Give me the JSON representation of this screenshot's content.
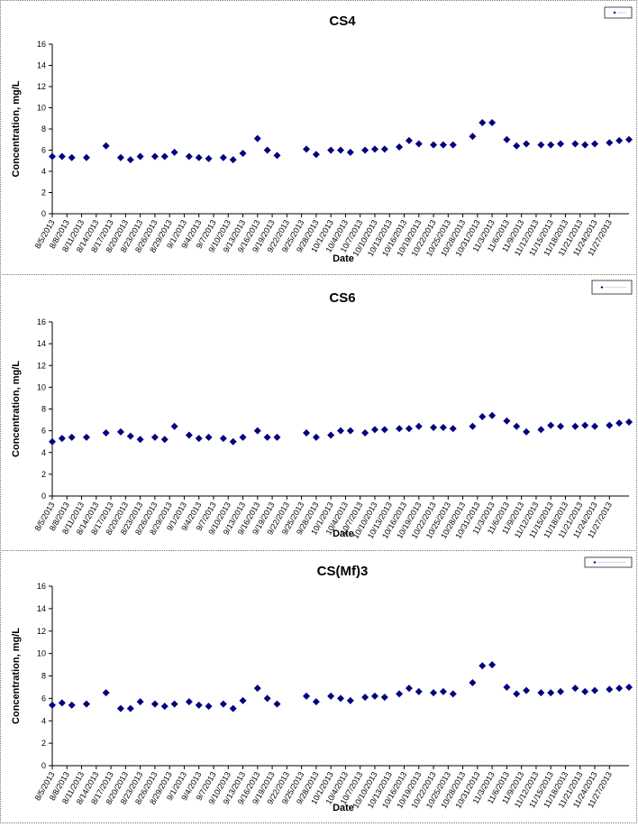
{
  "chart_data": [
    {
      "type": "scatter",
      "title": "CS4",
      "xlabel": "Date",
      "ylabel": "Concentration, mg/L",
      "ylim": [
        0,
        16
      ],
      "yticks": [
        0,
        2,
        4,
        6,
        8,
        10,
        12,
        14,
        16
      ],
      "grid": false,
      "legend": "top-right",
      "marker_color": "#000080",
      "x_tick_labels": [
        "8/5/2013",
        "8/8/2013",
        "8/11/2013",
        "8/14/2013",
        "8/17/2013",
        "8/20/2013",
        "8/23/2013",
        "8/26/2013",
        "8/29/2013",
        "9/1/2013",
        "9/4/2013",
        "9/7/2013",
        "9/10/2013",
        "9/13/2013",
        "9/16/2013",
        "9/19/2013",
        "9/22/2013",
        "9/25/2013",
        "9/28/2013",
        "10/1/2013",
        "10/4/2013",
        "10/7/2013",
        "10/10/2013",
        "10/13/2013",
        "10/16/2013",
        "10/19/2013",
        "10/22/2013",
        "10/25/2013",
        "10/28/2013",
        "10/31/2013",
        "11/3/2013",
        "11/6/2013",
        "11/9/2013",
        "11/12/2013",
        "11/15/2013",
        "11/18/2013",
        "11/21/2013",
        "11/24/2013",
        "11/27/2013"
      ],
      "series": [
        {
          "name": "",
          "points": [
            [
              "2013-08-05",
              5.4
            ],
            [
              "2013-08-07",
              5.4
            ],
            [
              "2013-08-09",
              5.3
            ],
            [
              "2013-08-12",
              5.3
            ],
            [
              "2013-08-16",
              6.4
            ],
            [
              "2013-08-19",
              5.3
            ],
            [
              "2013-08-21",
              5.1
            ],
            [
              "2013-08-23",
              5.4
            ],
            [
              "2013-08-26",
              5.4
            ],
            [
              "2013-08-28",
              5.4
            ],
            [
              "2013-08-30",
              5.8
            ],
            [
              "2013-09-02",
              5.4
            ],
            [
              "2013-09-04",
              5.3
            ],
            [
              "2013-09-06",
              5.2
            ],
            [
              "2013-09-09",
              5.3
            ],
            [
              "2013-09-11",
              5.1
            ],
            [
              "2013-09-13",
              5.7
            ],
            [
              "2013-09-16",
              7.1
            ],
            [
              "2013-09-18",
              6.0
            ],
            [
              "2013-09-20",
              5.5
            ],
            [
              "2013-09-26",
              6.1
            ],
            [
              "2013-09-28",
              5.6
            ],
            [
              "2013-10-01",
              6.0
            ],
            [
              "2013-10-03",
              6.0
            ],
            [
              "2013-10-05",
              5.8
            ],
            [
              "2013-10-08",
              6.0
            ],
            [
              "2013-10-10",
              6.1
            ],
            [
              "2013-10-12",
              6.1
            ],
            [
              "2013-10-15",
              6.3
            ],
            [
              "2013-10-17",
              6.9
            ],
            [
              "2013-10-19",
              6.6
            ],
            [
              "2013-10-22",
              6.5
            ],
            [
              "2013-10-24",
              6.5
            ],
            [
              "2013-10-26",
              6.5
            ],
            [
              "2013-10-30",
              7.3
            ],
            [
              "2013-11-01",
              8.6
            ],
            [
              "2013-11-03",
              8.6
            ],
            [
              "2013-11-06",
              7.0
            ],
            [
              "2013-11-08",
              6.4
            ],
            [
              "2013-11-10",
              6.6
            ],
            [
              "2013-11-13",
              6.5
            ],
            [
              "2013-11-15",
              6.5
            ],
            [
              "2013-11-17",
              6.6
            ],
            [
              "2013-11-20",
              6.6
            ],
            [
              "2013-11-22",
              6.5
            ],
            [
              "2013-11-24",
              6.6
            ],
            [
              "2013-11-27",
              6.7
            ],
            [
              "2013-11-29",
              6.9
            ],
            [
              "2013-12-01",
              7.0
            ]
          ]
        }
      ]
    },
    {
      "type": "scatter",
      "title": "CS6",
      "xlabel": "Date",
      "ylabel": "Concentration, mg/L",
      "ylim": [
        0,
        16
      ],
      "yticks": [
        0,
        2,
        4,
        6,
        8,
        10,
        12,
        14,
        16
      ],
      "grid": false,
      "legend": "top-right",
      "marker_color": "#000080",
      "x_tick_labels": [
        "8/5/2013",
        "8/8/2013",
        "8/11/2013",
        "8/14/2013",
        "8/17/2013",
        "8/20/2013",
        "8/23/2013",
        "8/26/2013",
        "8/29/2013",
        "9/1/2013",
        "9/4/2013",
        "9/7/2013",
        "9/10/2013",
        "9/13/2013",
        "9/16/2013",
        "9/19/2013",
        "9/22/2013",
        "9/25/2013",
        "9/28/2013",
        "10/1/2013",
        "10/4/2013",
        "10/7/2013",
        "10/10/2013",
        "10/13/2013",
        "10/16/2013",
        "10/19/2013",
        "10/22/2013",
        "10/25/2013",
        "10/28/2013",
        "10/31/2013",
        "11/3/2013",
        "11/6/2013",
        "11/9/2013",
        "11/12/2013",
        "11/15/2013",
        "11/18/2013",
        "11/21/2013",
        "11/24/2013",
        "11/27/2013"
      ],
      "series": [
        {
          "name": "",
          "points": [
            [
              "2013-08-05",
              5.0
            ],
            [
              "2013-08-07",
              5.3
            ],
            [
              "2013-08-09",
              5.4
            ],
            [
              "2013-08-12",
              5.4
            ],
            [
              "2013-08-16",
              5.8
            ],
            [
              "2013-08-19",
              5.9
            ],
            [
              "2013-08-21",
              5.5
            ],
            [
              "2013-08-23",
              5.2
            ],
            [
              "2013-08-26",
              5.4
            ],
            [
              "2013-08-28",
              5.2
            ],
            [
              "2013-08-30",
              6.4
            ],
            [
              "2013-09-02",
              5.6
            ],
            [
              "2013-09-04",
              5.3
            ],
            [
              "2013-09-06",
              5.4
            ],
            [
              "2013-09-09",
              5.3
            ],
            [
              "2013-09-11",
              5.0
            ],
            [
              "2013-09-13",
              5.4
            ],
            [
              "2013-09-16",
              6.0
            ],
            [
              "2013-09-18",
              5.4
            ],
            [
              "2013-09-20",
              5.4
            ],
            [
              "2013-09-26",
              5.8
            ],
            [
              "2013-09-28",
              5.4
            ],
            [
              "2013-10-01",
              5.6
            ],
            [
              "2013-10-03",
              6.0
            ],
            [
              "2013-10-05",
              6.0
            ],
            [
              "2013-10-08",
              5.8
            ],
            [
              "2013-10-10",
              6.1
            ],
            [
              "2013-10-12",
              6.1
            ],
            [
              "2013-10-15",
              6.2
            ],
            [
              "2013-10-17",
              6.2
            ],
            [
              "2013-10-19",
              6.4
            ],
            [
              "2013-10-22",
              6.3
            ],
            [
              "2013-10-24",
              6.3
            ],
            [
              "2013-10-26",
              6.2
            ],
            [
              "2013-10-30",
              6.4
            ],
            [
              "2013-11-01",
              7.3
            ],
            [
              "2013-11-03",
              7.4
            ],
            [
              "2013-11-06",
              6.9
            ],
            [
              "2013-11-08",
              6.4
            ],
            [
              "2013-11-10",
              5.9
            ],
            [
              "2013-11-13",
              6.1
            ],
            [
              "2013-11-15",
              6.5
            ],
            [
              "2013-11-17",
              6.4
            ],
            [
              "2013-11-20",
              6.4
            ],
            [
              "2013-11-22",
              6.5
            ],
            [
              "2013-11-24",
              6.4
            ],
            [
              "2013-11-27",
              6.5
            ],
            [
              "2013-11-29",
              6.7
            ],
            [
              "2013-12-01",
              6.8
            ]
          ]
        }
      ]
    },
    {
      "type": "scatter",
      "title": "CS(Mf)3",
      "xlabel": "Date",
      "ylabel": "Concentration, mg/L",
      "ylim": [
        0,
        16
      ],
      "yticks": [
        0,
        2,
        4,
        6,
        8,
        10,
        12,
        14,
        16
      ],
      "grid": false,
      "legend": "top-right",
      "marker_color": "#000080",
      "x_tick_labels": [
        "8/5/2013",
        "8/8/2013",
        "8/11/2013",
        "8/14/2013",
        "8/17/2013",
        "8/20/2013",
        "8/23/2013",
        "8/26/2013",
        "8/29/2013",
        "9/1/2013",
        "9/4/2013",
        "9/7/2013",
        "9/10/2013",
        "9/13/2013",
        "9/16/2013",
        "9/19/2013",
        "9/22/2013",
        "9/25/2013",
        "9/28/2013",
        "10/1/2013",
        "10/4/2013",
        "10/7/2013",
        "10/10/2013",
        "10/13/2013",
        "10/16/2013",
        "10/19/2013",
        "10/22/2013",
        "10/25/2013",
        "10/28/2013",
        "10/31/2013",
        "11/3/2013",
        "11/6/2013",
        "11/9/2013",
        "11/12/2013",
        "11/15/2013",
        "11/18/2013",
        "11/21/2013",
        "11/24/2013",
        "11/27/2013"
      ],
      "series": [
        {
          "name": "",
          "points": [
            [
              "2013-08-05",
              5.4
            ],
            [
              "2013-08-07",
              5.6
            ],
            [
              "2013-08-09",
              5.4
            ],
            [
              "2013-08-12",
              5.5
            ],
            [
              "2013-08-16",
              6.5
            ],
            [
              "2013-08-19",
              5.1
            ],
            [
              "2013-08-21",
              5.1
            ],
            [
              "2013-08-23",
              5.7
            ],
            [
              "2013-08-26",
              5.5
            ],
            [
              "2013-08-28",
              5.3
            ],
            [
              "2013-08-30",
              5.5
            ],
            [
              "2013-09-02",
              5.7
            ],
            [
              "2013-09-04",
              5.4
            ],
            [
              "2013-09-06",
              5.3
            ],
            [
              "2013-09-09",
              5.5
            ],
            [
              "2013-09-11",
              5.1
            ],
            [
              "2013-09-13",
              5.8
            ],
            [
              "2013-09-16",
              6.9
            ],
            [
              "2013-09-18",
              6.0
            ],
            [
              "2013-09-20",
              5.5
            ],
            [
              "2013-09-26",
              6.2
            ],
            [
              "2013-09-28",
              5.7
            ],
            [
              "2013-10-01",
              6.2
            ],
            [
              "2013-10-03",
              6.0
            ],
            [
              "2013-10-05",
              5.8
            ],
            [
              "2013-10-08",
              6.1
            ],
            [
              "2013-10-10",
              6.2
            ],
            [
              "2013-10-12",
              6.1
            ],
            [
              "2013-10-15",
              6.4
            ],
            [
              "2013-10-17",
              6.9
            ],
            [
              "2013-10-19",
              6.6
            ],
            [
              "2013-10-22",
              6.5
            ],
            [
              "2013-10-24",
              6.6
            ],
            [
              "2013-10-26",
              6.4
            ],
            [
              "2013-10-30",
              7.4
            ],
            [
              "2013-11-01",
              8.9
            ],
            [
              "2013-11-03",
              9.0
            ],
            [
              "2013-11-06",
              7.0
            ],
            [
              "2013-11-08",
              6.4
            ],
            [
              "2013-11-10",
              6.7
            ],
            [
              "2013-11-13",
              6.5
            ],
            [
              "2013-11-15",
              6.5
            ],
            [
              "2013-11-17",
              6.6
            ],
            [
              "2013-11-20",
              6.9
            ],
            [
              "2013-11-22",
              6.6
            ],
            [
              "2013-11-24",
              6.7
            ],
            [
              "2013-11-27",
              6.8
            ],
            [
              "2013-11-29",
              6.9
            ],
            [
              "2013-12-01",
              7.0
            ]
          ]
        }
      ]
    }
  ]
}
